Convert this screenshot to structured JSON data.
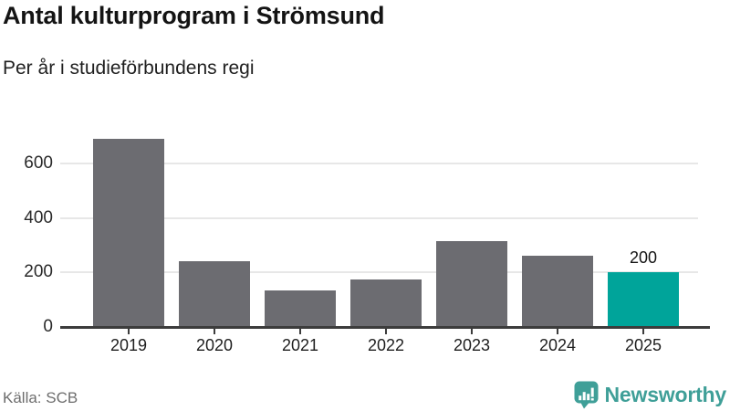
{
  "header": {
    "title": "Antal kulturprogram i Strömsund",
    "subtitle": "Per år i studieförbundens regi"
  },
  "footer": {
    "source": "Källa: SCB",
    "brand": "Newsworthy",
    "brand_icon": "newsworthy-speech-bubble-barchart-icon"
  },
  "colors": {
    "bar": "#6c6c71",
    "highlight": "#00a49a",
    "axis": "#3c3c3c",
    "grid": "#e7e7e7",
    "brand": "#3f9f98"
  },
  "chart_data": {
    "type": "bar",
    "title": "Antal kulturprogram i Strömsund",
    "subtitle": "Per år i studieförbundens regi",
    "categories": [
      "2019",
      "2020",
      "2021",
      "2022",
      "2023",
      "2024",
      "2025"
    ],
    "values": [
      690,
      240,
      135,
      175,
      315,
      260,
      200
    ],
    "highlight_index": 6,
    "annotations": [
      {
        "category": "2025",
        "text": "200"
      }
    ],
    "xlabel": "",
    "ylabel": "",
    "ylim": [
      0,
      730
    ],
    "yticks": [
      0,
      200,
      400,
      600
    ],
    "grid": "horizontal",
    "legend": "none",
    "source": "Källa: SCB"
  }
}
